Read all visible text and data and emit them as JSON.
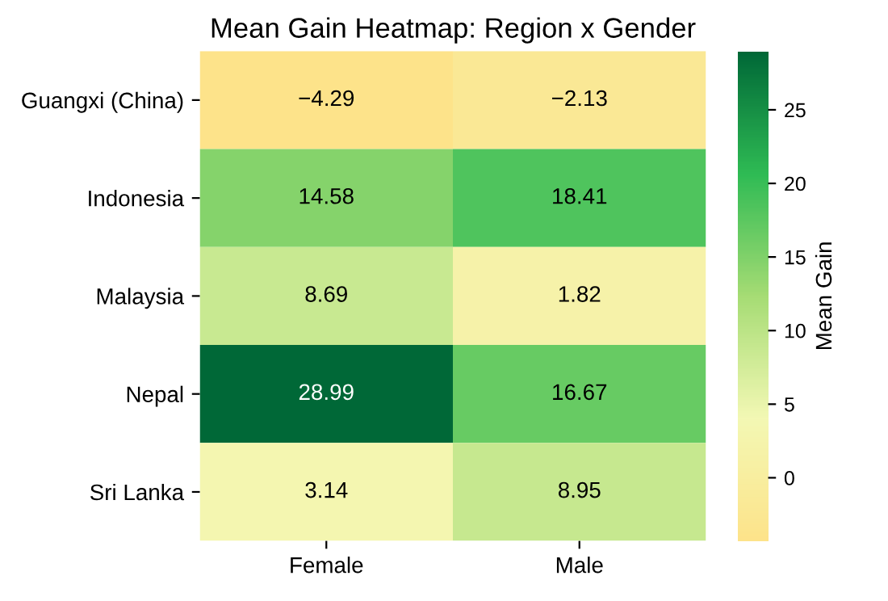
{
  "chart_data": {
    "type": "heatmap",
    "title": "Mean Gain Heatmap: Region x Gender",
    "categories": [
      "Female",
      "Male"
    ],
    "y_categories": [
      "Guangxi (China)",
      "Indonesia",
      "Malaysia",
      "Nepal",
      "Sri Lanka"
    ],
    "cells": [
      [
        -4.29,
        -2.13
      ],
      [
        14.58,
        18.41
      ],
      [
        8.69,
        1.82
      ],
      [
        28.99,
        16.67
      ],
      [
        3.14,
        8.95
      ]
    ],
    "data_labels": true,
    "clabel": "Mean Gain",
    "clim": [
      -4.29,
      28.99
    ],
    "cticks": [
      0,
      5,
      10,
      15,
      20,
      25
    ],
    "colors": [
      "#fde38a",
      "#f3f8b4",
      "#a6dc74",
      "#2fbb54",
      "#006837"
    ]
  }
}
